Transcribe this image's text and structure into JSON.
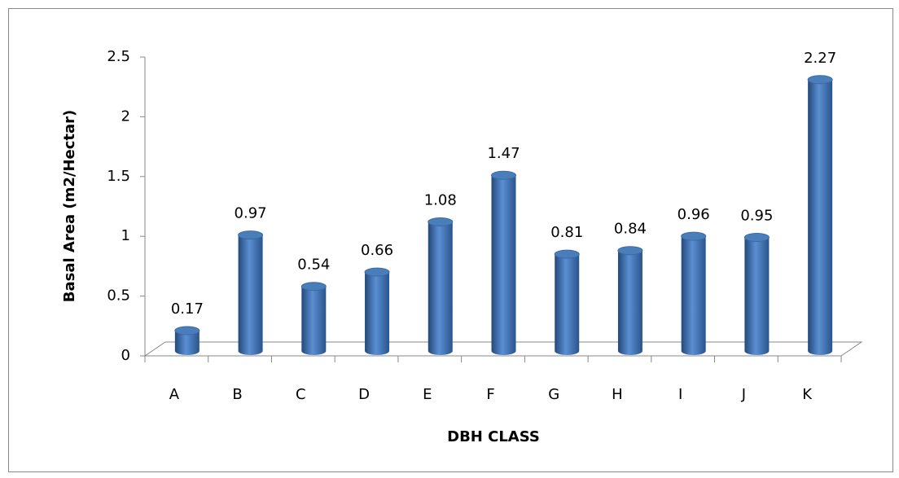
{
  "chart_data": {
    "type": "bar",
    "x_label": "DBH CLASS",
    "y_label": "Basal Area (m2/Hectar)",
    "categories": [
      "A",
      "B",
      "C",
      "D",
      "E",
      "F",
      "G",
      "H",
      "I",
      "J",
      "K"
    ],
    "values": [
      0.17,
      0.97,
      0.54,
      0.66,
      1.08,
      1.47,
      0.81,
      0.84,
      0.96,
      0.95,
      2.27
    ],
    "color": "#4a7ebb",
    "ylim": [
      0,
      2.5
    ],
    "yticks": [
      0,
      0.5,
      1,
      1.5,
      2,
      2.5
    ]
  }
}
